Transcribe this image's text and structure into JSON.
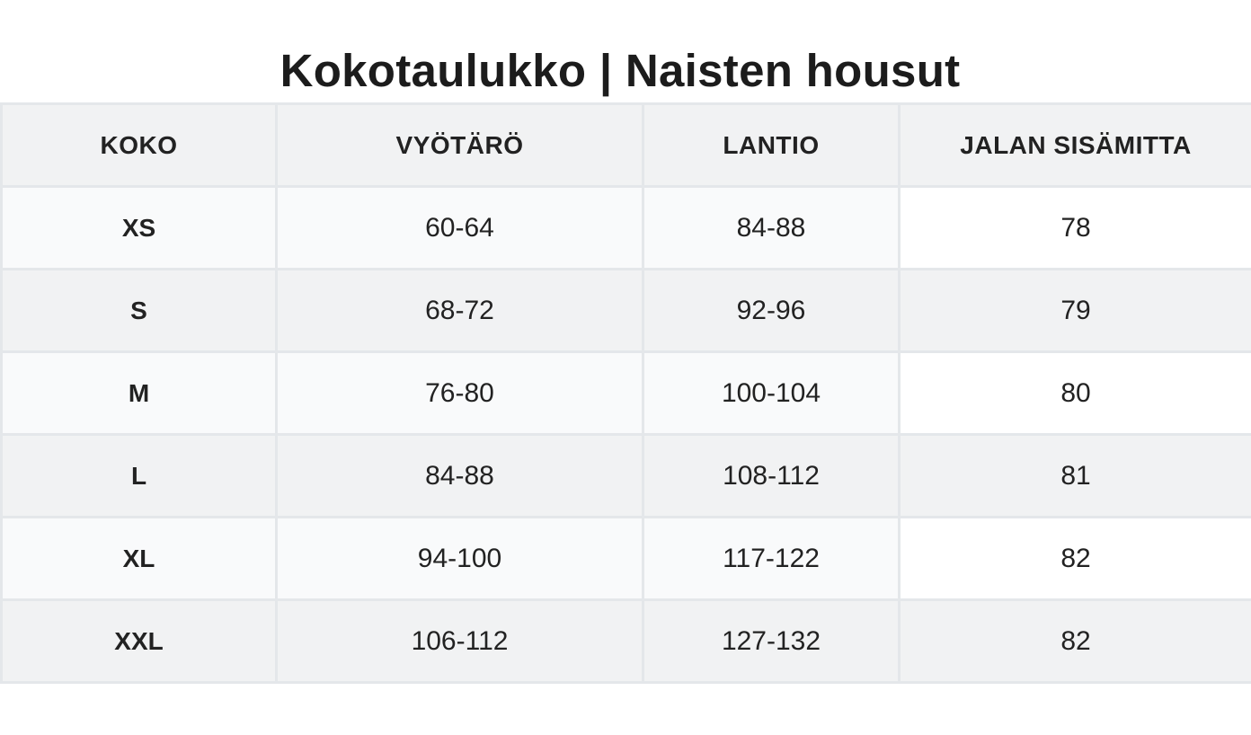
{
  "page": {
    "title": "Kokotaulukko | Naisten housut"
  },
  "table": {
    "headers": [
      "KOKO",
      "VYÖTÄRÖ",
      "LANTIO",
      "JALAN SISÄMITTA"
    ],
    "rows": [
      [
        "XS",
        "60-64",
        "84-88",
        "78"
      ],
      [
        "S",
        "68-72",
        "92-96",
        "79"
      ],
      [
        "M",
        "76-80",
        "100-104",
        "80"
      ],
      [
        "L",
        "84-88",
        "108-112",
        "81"
      ],
      [
        "XL",
        "94-100",
        "117-122",
        "82"
      ],
      [
        "XXL",
        "106-112",
        "127-132",
        "82"
      ]
    ]
  },
  "colors": {
    "header_bg": "#f1f2f3",
    "row_alt_bg": "#f1f2f3",
    "row_plain_bg": "#f9fafb",
    "border": "#e4e7ea",
    "text": "#222222"
  }
}
